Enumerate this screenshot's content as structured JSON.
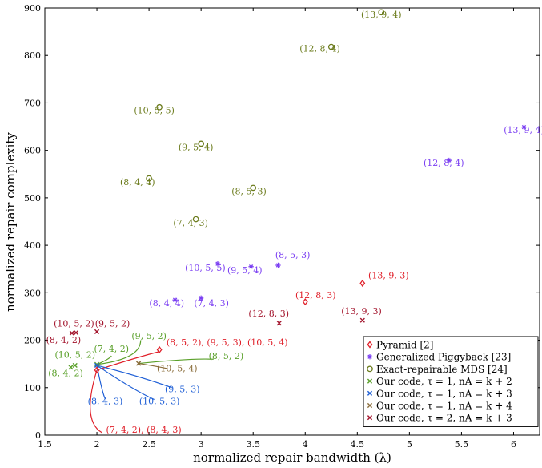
{
  "chart_data": {
    "type": "scatter",
    "xlabel": "normalized repair bandwidth (λ)",
    "ylabel": "normalized repair complexity",
    "xlim": [
      1.5,
      6.25
    ],
    "ylim": [
      0,
      900
    ],
    "xticks": [
      "1.5",
      "2",
      "2.5",
      "3",
      "3.5",
      "4",
      "4.5",
      "5",
      "5.5",
      "6"
    ],
    "yticks": [
      "0",
      "100",
      "200",
      "300",
      "400",
      "500",
      "600",
      "700",
      "800",
      "900"
    ],
    "legend_position": "bottom-right",
    "grid": false,
    "series": [
      {
        "name": "Pyramid [2]",
        "color": "#e0202a",
        "marker": "diamond",
        "points": [
          {
            "x": 2.0,
            "y": 137
          },
          {
            "x": 2.6,
            "y": 180
          },
          {
            "x": 4.0,
            "y": 281
          },
          {
            "x": 4.55,
            "y": 320
          }
        ]
      },
      {
        "name": "Generalized Piggyback [23]",
        "color": "#7b3ff2",
        "marker": "star",
        "points": [
          {
            "x": 2.75,
            "y": 285
          },
          {
            "x": 3.0,
            "y": 289
          },
          {
            "x": 3.16,
            "y": 361
          },
          {
            "x": 3.48,
            "y": 355
          },
          {
            "x": 3.74,
            "y": 358
          },
          {
            "x": 5.38,
            "y": 579
          },
          {
            "x": 6.1,
            "y": 649
          }
        ]
      },
      {
        "name": "Exact-repairable MDS [24]",
        "color": "#6b7b1c",
        "marker": "circle",
        "points": [
          {
            "x": 2.5,
            "y": 541
          },
          {
            "x": 2.6,
            "y": 691
          },
          {
            "x": 2.95,
            "y": 455
          },
          {
            "x": 3.0,
            "y": 614
          },
          {
            "x": 3.5,
            "y": 521
          },
          {
            "x": 4.25,
            "y": 818
          },
          {
            "x": 4.73,
            "y": 891
          }
        ]
      },
      {
        "name": "Our code, τ = 1, nA = k + 2",
        "color": "#5aa02a",
        "marker": "x",
        "points": [
          {
            "x": 1.75,
            "y": 143
          },
          {
            "x": 1.79,
            "y": 147
          },
          {
            "x": 2.0,
            "y": 149
          }
        ]
      },
      {
        "name": "Our code, τ = 1, nA = k + 3",
        "color": "#1f5fd6",
        "marker": "x",
        "points": [
          {
            "x": 2.0,
            "y": 147
          }
        ]
      },
      {
        "name": "Our code, τ = 1, nA = k + 4",
        "color": "#8a6d3b",
        "marker": "x",
        "points": [
          {
            "x": 2.4,
            "y": 151
          }
        ]
      },
      {
        "name": "Our code, τ = 2, nA = k + 3",
        "color": "#a3142c",
        "marker": "x",
        "points": [
          {
            "x": 1.76,
            "y": 215
          },
          {
            "x": 1.8,
            "y": 216
          },
          {
            "x": 2.0,
            "y": 218
          },
          {
            "x": 3.75,
            "y": 236
          },
          {
            "x": 4.55,
            "y": 242
          }
        ]
      }
    ],
    "annotations": [
      {
        "text": "(13, 9, 4)",
        "color": "#6b7b1c",
        "x": 4.73,
        "y": 880
      },
      {
        "text": "(12, 8, 4)",
        "color": "#6b7b1c",
        "x": 4.14,
        "y": 808
      },
      {
        "text": "(10, 5, 5)",
        "color": "#6b7b1c",
        "x": 2.55,
        "y": 678
      },
      {
        "text": "(9, 5, 4)",
        "color": "#6b7b1c",
        "x": 2.95,
        "y": 600
      },
      {
        "text": "(8, 4, 4)",
        "color": "#6b7b1c",
        "x": 2.39,
        "y": 527
      },
      {
        "text": "(8, 5, 3)",
        "color": "#6b7b1c",
        "x": 3.46,
        "y": 507
      },
      {
        "text": "(7, 4, 3)",
        "color": "#6b7b1c",
        "x": 2.9,
        "y": 441
      },
      {
        "text": "(13, 9, 4)",
        "color": "#7b3ff2",
        "x": 6.1,
        "y": 637
      },
      {
        "text": "(12, 8, 4)",
        "color": "#7b3ff2",
        "x": 5.33,
        "y": 567
      },
      {
        "text": "(8, 5, 3)",
        "color": "#7b3ff2",
        "x": 3.88,
        "y": 373
      },
      {
        "text": "(10, 5, 5)",
        "color": "#7b3ff2",
        "x": 3.04,
        "y": 346
      },
      {
        "text": "(9, 5, 4)",
        "color": "#7b3ff2",
        "x": 3.42,
        "y": 341
      },
      {
        "text": "(8, 4, 4)",
        "color": "#7b3ff2",
        "x": 2.67,
        "y": 272
      },
      {
        "text": "(7, 4, 3)",
        "color": "#7b3ff2",
        "x": 3.1,
        "y": 272
      },
      {
        "text": "(13, 9, 3)",
        "color": "#e0202a",
        "x": 4.8,
        "y": 330
      },
      {
        "text": "(12, 8, 3)",
        "color": "#e0202a",
        "x": 4.1,
        "y": 289
      },
      {
        "text": "(8, 5, 2), (9, 5, 3), (10, 5, 4)",
        "color": "#e0202a",
        "x": 3.25,
        "y": 189
      },
      {
        "text": "(7, 4, 2), (8, 4, 3)",
        "color": "#e0202a",
        "x": 2.45,
        "y": 5
      },
      {
        "text": "(13, 9, 3)",
        "color": "#a3142c",
        "x": 4.54,
        "y": 255
      },
      {
        "text": "(12, 8, 3)",
        "color": "#a3142c",
        "x": 3.65,
        "y": 250
      },
      {
        "text": "(10, 5, 2)",
        "color": "#a3142c",
        "x": 1.78,
        "y": 229
      },
      {
        "text": "(9, 5, 2)",
        "color": "#a3142c",
        "x": 2.15,
        "y": 229
      },
      {
        "text": "(8, 4, 2)",
        "color": "#a3142c",
        "x": 1.68,
        "y": 194
      },
      {
        "text": "(9, 5, 2)",
        "color": "#5aa02a",
        "x": 2.5,
        "y": 203
      },
      {
        "text": "(7, 4, 2)",
        "color": "#5aa02a",
        "x": 2.14,
        "y": 176
      },
      {
        "text": "(10, 5, 2)",
        "color": "#5aa02a",
        "x": 1.79,
        "y": 163
      },
      {
        "text": "(8, 4, 2)",
        "color": "#5aa02a",
        "x": 1.7,
        "y": 124
      },
      {
        "text": "(8, 5, 2)",
        "color": "#5aa02a",
        "x": 3.24,
        "y": 160
      },
      {
        "text": "(10, 5, 4)",
        "color": "#8a6d3b",
        "x": 2.77,
        "y": 134
      },
      {
        "text": "(9, 5, 3)",
        "color": "#1f5fd6",
        "x": 2.82,
        "y": 90
      },
      {
        "text": "(8, 4, 3)",
        "color": "#1f5fd6",
        "x": 2.08,
        "y": 65
      },
      {
        "text": "(10, 5, 3)",
        "color": "#1f5fd6",
        "x": 2.6,
        "y": 65
      }
    ],
    "leaders": [
      {
        "color": "#5aa02a",
        "from": [
          2.0,
          149
        ],
        "ctrl": [
          2.42,
          160
        ],
        "to": [
          2.42,
          200
        ]
      },
      {
        "color": "#5aa02a",
        "from": [
          2.0,
          149
        ],
        "ctrl": [
          2.12,
          160
        ],
        "to": [
          2.14,
          167
        ]
      },
      {
        "color": "#5aa02a",
        "from": [
          2.4,
          151
        ],
        "ctrl": [
          2.9,
          162
        ],
        "to": [
          3.12,
          160
        ]
      },
      {
        "color": "#e0202a",
        "from": [
          2.0,
          137
        ],
        "ctrl": [
          1.85,
          30
        ],
        "to": [
          2.05,
          5
        ]
      },
      {
        "color": "#e0202a",
        "from": [
          2.0,
          137
        ],
        "ctrl": [
          2.4,
          165
        ],
        "to": [
          2.6,
          176
        ]
      },
      {
        "color": "#1f5fd6",
        "from": [
          2.0,
          147
        ],
        "ctrl": [
          2.05,
          90
        ],
        "to": [
          2.08,
          76
        ]
      },
      {
        "color": "#1f5fd6",
        "from": [
          2.0,
          147
        ],
        "ctrl": [
          2.35,
          95
        ],
        "to": [
          2.55,
          75
        ]
      },
      {
        "color": "#1f5fd6",
        "from": [
          2.0,
          147
        ],
        "ctrl": [
          2.4,
          125
        ],
        "to": [
          2.72,
          100
        ]
      },
      {
        "color": "#8a6d3b",
        "from": [
          2.4,
          151
        ],
        "ctrl": [
          2.55,
          146
        ],
        "to": [
          2.68,
          140
        ]
      }
    ]
  }
}
